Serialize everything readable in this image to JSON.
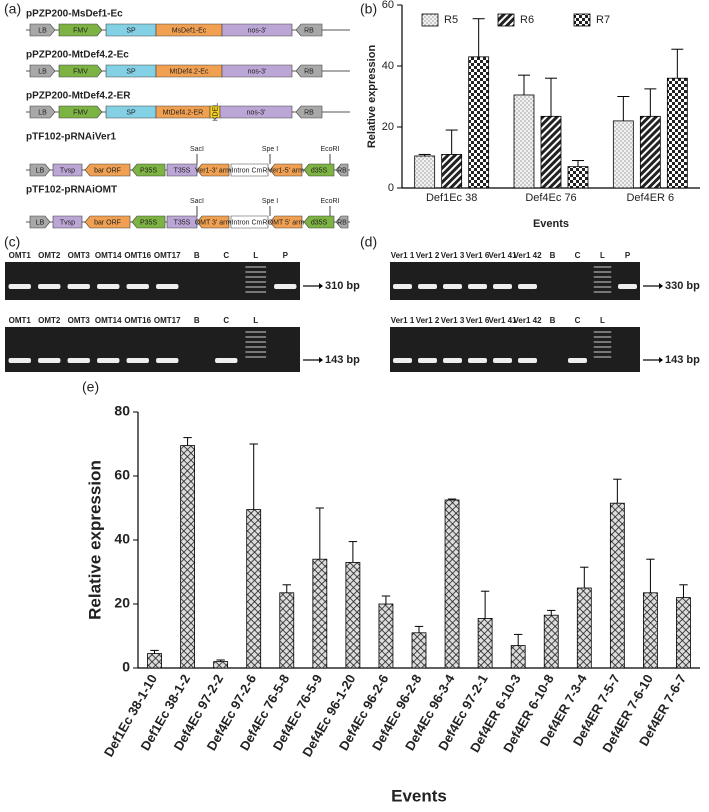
{
  "panel_labels": [
    "(a)",
    "(b)",
    "(c)",
    "(d)",
    "(e)"
  ],
  "constructs": [
    {
      "name": "pPZP200-MsDef1-Ec",
      "parts": [
        "LB",
        "FMV",
        "SP",
        "MsDef1-Ec",
        "nos-3'",
        "RB"
      ],
      "sites": []
    },
    {
      "name": "pPZP200-MtDef4.2-Ec",
      "parts": [
        "LB",
        "FMV",
        "SP",
        "MtDef4.2-Ec",
        "nos-3'",
        "RB"
      ],
      "sites": []
    },
    {
      "name": "pPZP200-MtDef4.2-ER",
      "parts": [
        "LB",
        "FMV",
        "SP",
        "MtDef4.2-ER",
        "KDEL",
        "nos-3'",
        "RB"
      ],
      "sites": []
    },
    {
      "name": "pTF102-pRNAiVer1",
      "parts": [
        "LB",
        "Tvsp",
        "bar ORF",
        "P35S",
        "T35S",
        "Ver1-3' arm",
        "Intron CmR",
        "Ver1-5' arm",
        "d35S",
        "RB"
      ],
      "sites": [
        "SacI",
        "Spe I",
        "EcoRI"
      ]
    },
    {
      "name": "pTF102-pRNAiOMT",
      "parts": [
        "LB",
        "Tvsp",
        "bar ORF",
        "P35S",
        "T35S",
        "OMT 3' arm",
        "Intron CmR",
        "OMT 5' arm",
        "d35S",
        "RB"
      ],
      "sites": [
        "SacI",
        "Spe I",
        "EcoRI"
      ]
    }
  ],
  "gels": [
    {
      "lanes": [
        "OMT1",
        "OMT2",
        "OMT3",
        "OMT14",
        "OMT16",
        "OMT17",
        "B",
        "C",
        "L",
        "P"
      ],
      "size": "310 bp"
    },
    {
      "lanes": [
        "OMT1",
        "OMT2",
        "OMT3",
        "OMT14",
        "OMT16",
        "OMT17",
        "B",
        "C",
        "L"
      ],
      "size": "143 bp"
    },
    {
      "lanes": [
        "Ver1 1",
        "Ver1 2",
        "Ver1 3",
        "Ver1 6",
        "Ver1 41",
        "Ver1 42",
        "B",
        "C",
        "L",
        "P"
      ],
      "size": "330 bp"
    },
    {
      "lanes": [
        "Ver1 1",
        "Ver1 2",
        "Ver1 3",
        "Ver1 6",
        "Ver1 41",
        "Ver1 42",
        "B",
        "C",
        "L"
      ],
      "size": "143 bp"
    }
  ],
  "chart_data": [
    {
      "type": "bar",
      "x_label": "Events",
      "y_label": "Relative expression",
      "categories": [
        "Def1Ec 38",
        "Def4Ec 76",
        "Def4ER 6"
      ],
      "series": [
        {
          "name": "R5",
          "pattern": "dots",
          "values": [
            10.5,
            30.5,
            22
          ],
          "errors": [
            0.5,
            6.5,
            8
          ]
        },
        {
          "name": "R6",
          "pattern": "hatch",
          "values": [
            11,
            23.5,
            23.5
          ],
          "errors": [
            8,
            12.5,
            9
          ]
        },
        {
          "name": "R7",
          "pattern": "checker",
          "values": [
            43,
            7,
            36
          ],
          "errors": [
            12.5,
            2,
            9.5
          ]
        }
      ],
      "ylim": [
        0,
        60
      ],
      "yticks": [
        0,
        20,
        40,
        60
      ]
    },
    {
      "type": "bar",
      "x_label": "Events",
      "y_label": "Relative expression",
      "categories": [
        "Def1Ec 38-1-10",
        "Def1Ec 38-1-2",
        "Def4Ec 97-2-2",
        "Def4Ec 97-2-6",
        "Def4Ec 76-5-8",
        "Def4Ec 76-5-9",
        "Def4Ec 96-1-20",
        "Def4Ec 96-2-6",
        "Def4Ec 96-2-8",
        "Def4Ec 96-3-4",
        "Def4Ec 97-2-1",
        "Def4ER 6-10-3",
        "Def4ER 6-10-8",
        "Def4ER 7-3-4",
        "Def4ER 7-5-7",
        "Def4ER 7-6-10",
        "Def4ER 7-6-7"
      ],
      "pattern": "crosshatch",
      "values": [
        4.5,
        69.5,
        2,
        49.5,
        23.5,
        34,
        33,
        20,
        11,
        52.5,
        15.5,
        7,
        16.5,
        25,
        51.5,
        23.5,
        22
      ],
      "errors": [
        1,
        2.5,
        0.5,
        20.5,
        2.5,
        16,
        6.5,
        2.5,
        2,
        0.3,
        8.5,
        3.5,
        1.5,
        6.5,
        7.5,
        10.5,
        4
      ],
      "ylim": [
        0,
        80
      ],
      "yticks": [
        0,
        20,
        40,
        60,
        80
      ]
    }
  ]
}
